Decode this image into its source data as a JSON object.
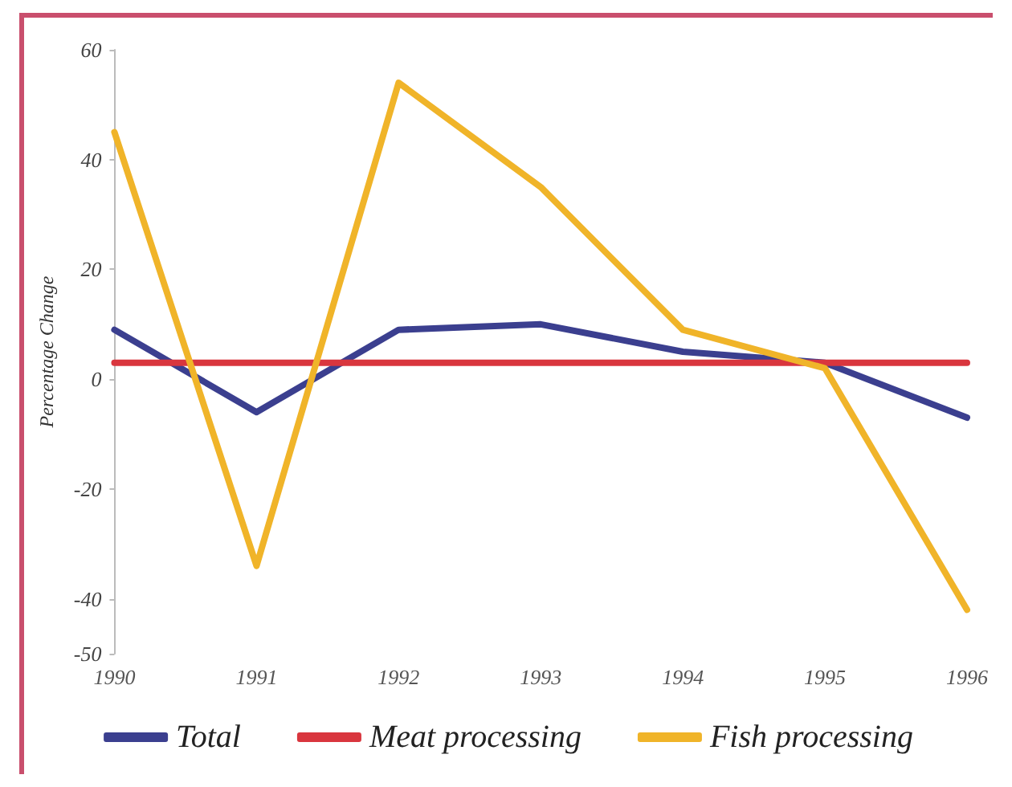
{
  "chart_data": {
    "type": "line",
    "ylabel": "Percentage Change",
    "categories": [
      "1990",
      "1991",
      "1992",
      "1993",
      "1994",
      "1995",
      "1996"
    ],
    "series": [
      {
        "name": "Total",
        "color": "#3b3f8f",
        "values": [
          9,
          -6,
          9,
          10,
          5,
          3,
          -7
        ]
      },
      {
        "name": "Meat processing",
        "color": "#d9363e",
        "values": [
          3,
          3,
          3,
          3,
          3,
          3,
          3
        ]
      },
      {
        "name": "Fish processing",
        "color": "#f0b429",
        "values": [
          45,
          -34,
          54,
          35,
          9,
          2,
          -42
        ]
      }
    ],
    "ylim": [
      -50,
      60
    ],
    "yticks": [
      -50,
      -40,
      -20,
      0,
      20,
      40,
      60
    ],
    "grid": false,
    "legend": "bottom",
    "marker": "none",
    "line_style": "solid"
  }
}
